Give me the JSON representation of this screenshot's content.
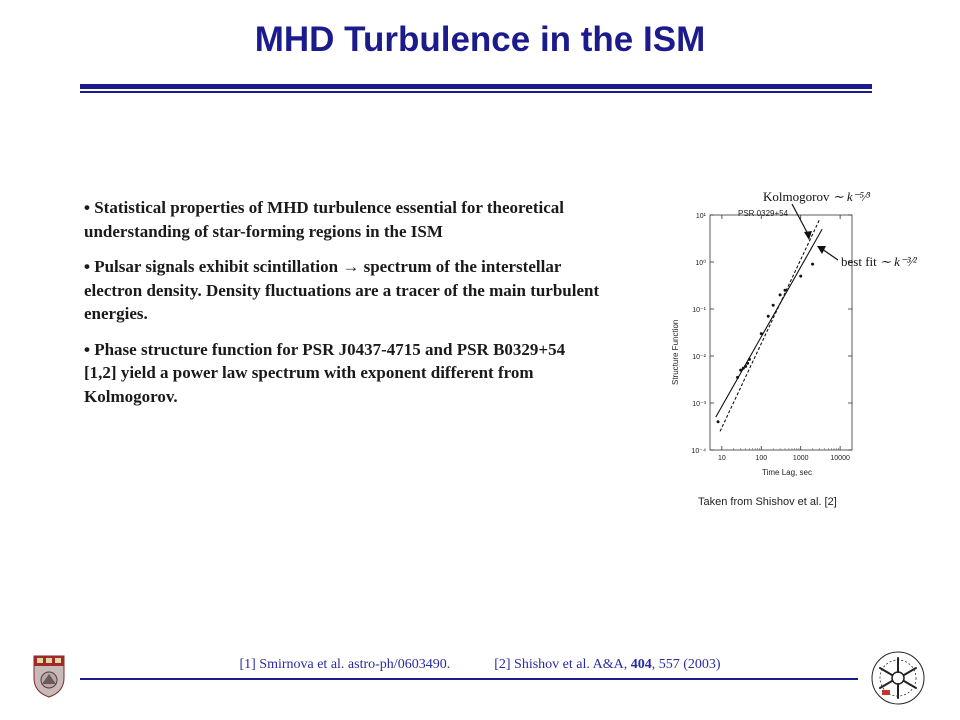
{
  "slide": {
    "title": "MHD Turbulence in the ISM",
    "bullets": [
      "Statistical properties of MHD turbulence essential for theoretical understanding of star-forming regions in the ISM",
      "Pulsar signals exhibit scintillation → spectrum of the interstellar electron density. Density fluctuations are a tracer of the main turbulent energies.",
      "Phase structure function for PSR J0437-4715 and PSR B0329+54 [1,2] yield a power law spectrum with exponent different from Kolmogorov."
    ],
    "figure_caption": "Taken  from Shishov et al. [2]",
    "references": {
      "ref1": "[1] Smirnova et al. astro-ph/0603490.",
      "ref2_prefix": "[2] Shishov et al. A&A, ",
      "ref2_volume": "404",
      "ref2_suffix": ", 557 (2003)"
    }
  },
  "chart_data": {
    "type": "scatter",
    "title": "PSR 0329+54",
    "xlabel": "Time Lag, sec",
    "ylabel": "Structure Function",
    "xscale": "log",
    "yscale": "log",
    "xlim": [
      5,
      20000
    ],
    "ylim": [
      0.0001,
      10
    ],
    "x_ticks": [
      10,
      100,
      1000,
      10000
    ],
    "x_tick_labels": [
      "10",
      "100",
      "1000",
      "10000"
    ],
    "y_ticks": [
      0.0001,
      0.001,
      0.01,
      0.1,
      1,
      10
    ],
    "y_tick_labels": [
      "10⁻⁴",
      "10⁻³",
      "10⁻²",
      "10⁻¹",
      "10⁰",
      "10¹"
    ],
    "points": [
      {
        "x": 8,
        "y": 0.0004
      },
      {
        "x": 25,
        "y": 0.0035
      },
      {
        "x": 30,
        "y": 0.005
      },
      {
        "x": 35,
        "y": 0.0055
      },
      {
        "x": 40,
        "y": 0.006
      },
      {
        "x": 45,
        "y": 0.007
      },
      {
        "x": 50,
        "y": 0.0085
      },
      {
        "x": 100,
        "y": 0.03
      },
      {
        "x": 150,
        "y": 0.07
      },
      {
        "x": 200,
        "y": 0.12
      },
      {
        "x": 300,
        "y": 0.2
      },
      {
        "x": 400,
        "y": 0.25
      },
      {
        "x": 1000,
        "y": 0.5
      },
      {
        "x": 2000,
        "y": 0.9
      }
    ],
    "lines": [
      {
        "label": "best fit",
        "style": "solid",
        "x": [
          7,
          3500
        ],
        "y": [
          0.0005,
          5
        ]
      },
      {
        "label": "Kolmogorov",
        "style": "dashed",
        "x": [
          9,
          3000
        ],
        "y": [
          0.00025,
          8
        ]
      }
    ],
    "annotations": [
      {
        "text_left": "Kolmogorov ",
        "formula": "∼ k⁻⁵⁄³",
        "points_to": "dashed line"
      },
      {
        "text_left": "best fit ",
        "formula": "∼ k⁻³⁄²",
        "points_to": "solid line"
      }
    ]
  }
}
